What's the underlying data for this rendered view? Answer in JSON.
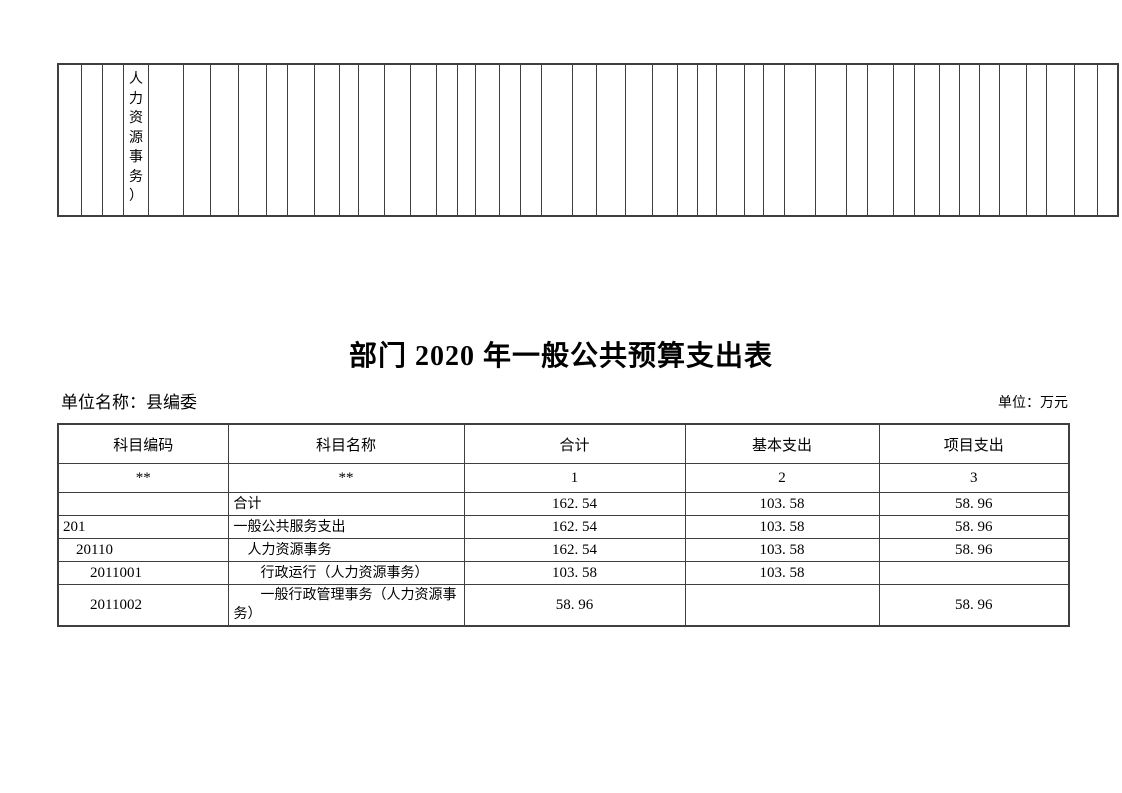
{
  "page": {
    "title": "部门 2020 年一般公共预算支出表",
    "unit_name": "单位名称：县编委",
    "unit": "单位：万元"
  },
  "top_table": {
    "column_count": 44,
    "text_column_index": 3,
    "vertical_text": "人力资源事务）"
  },
  "budget_table": {
    "headers": [
      "科目编码",
      "科目名称",
      "合计",
      "基本支出",
      "项目支出"
    ],
    "subheaders": [
      "**",
      "**",
      "1",
      "2",
      "3"
    ],
    "rows": [
      {
        "level": 0,
        "code": "",
        "name": "合计",
        "total": "162. 54",
        "basic": "103. 58",
        "project": "58. 96"
      },
      {
        "level": 1,
        "code": "201",
        "name": "一般公共服务支出",
        "total": "162. 54",
        "basic": "103. 58",
        "project": "58. 96"
      },
      {
        "level": 2,
        "code": "20110",
        "name": "人力资源事务",
        "total": "162. 54",
        "basic": "103. 58",
        "project": "58. 96"
      },
      {
        "level": 3,
        "code": "2011001",
        "name": "行政运行（人力资源事务）",
        "total": "103. 58",
        "basic": "103. 58",
        "project": ""
      },
      {
        "level": 3,
        "code": "2011002",
        "name": "一般行政管理事务（人力资源事务）",
        "total": "58. 96",
        "basic": "",
        "project": "58. 96"
      }
    ]
  }
}
